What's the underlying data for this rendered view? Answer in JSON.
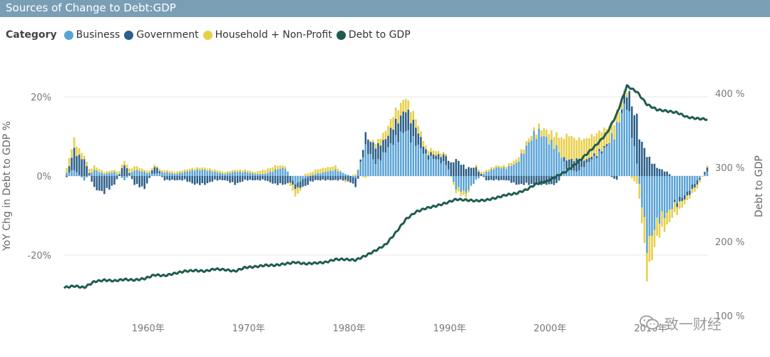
{
  "title": "Sources of Change to Debt:GDP",
  "legend": {
    "category_label": "Category",
    "items": [
      {
        "name": "Business",
        "color": "#5aa3d6"
      },
      {
        "name": "Government",
        "color": "#2c5f8a"
      },
      {
        "name": "Household + Non-Profit",
        "color": "#e8cf48"
      },
      {
        "name": "Debt to GDP",
        "color": "#1f5c50"
      }
    ]
  },
  "watermark": "致一财经",
  "chart_data": {
    "type": "bar",
    "stacked": true,
    "ylabel": "YoY Chg in Debt to GDP %",
    "y2label": "Debt to GDP",
    "xticks": [
      "1960年",
      "1970年",
      "1980年",
      "1990年",
      "2000年",
      "2010年"
    ],
    "xtick_years": [
      1960,
      1970,
      1980,
      1990,
      2000,
      2010
    ],
    "yticks": [
      "20%",
      "0%",
      "-20%"
    ],
    "ytick_values": [
      20,
      0,
      -20
    ],
    "y2ticks": [
      "400 %",
      "300 %",
      "200 %",
      "100 %"
    ],
    "y2tick_values": [
      400,
      300,
      200,
      100
    ],
    "ylim": [
      -30,
      25
    ],
    "y2lim": [
      100,
      420
    ],
    "xlim": [
      1952,
      2016
    ],
    "grid": true,
    "legend_position": "top-left",
    "bar_step_years": 0.25,
    "bar_series": [
      {
        "name": "Business",
        "color": "#5aa3d6",
        "points": [
          [
            1952,
            0.5
          ],
          [
            1953,
            1.5
          ],
          [
            1954,
            -1
          ],
          [
            1955,
            1.5
          ],
          [
            1956,
            0.5
          ],
          [
            1957,
            1
          ],
          [
            1958,
            -1
          ],
          [
            1959,
            1.5
          ],
          [
            1960,
            1
          ],
          [
            1961,
            0.5
          ],
          [
            1962,
            1
          ],
          [
            1963,
            0.5
          ],
          [
            1964,
            1
          ],
          [
            1965,
            1.5
          ],
          [
            1966,
            1.5
          ],
          [
            1967,
            1
          ],
          [
            1968,
            0.5
          ],
          [
            1969,
            1
          ],
          [
            1970,
            1
          ],
          [
            1971,
            0.5
          ],
          [
            1972,
            0.5
          ],
          [
            1973,
            1.5
          ],
          [
            1974,
            2
          ],
          [
            1975,
            -2
          ],
          [
            1976,
            -0.5
          ],
          [
            1977,
            0.5
          ],
          [
            1978,
            1
          ],
          [
            1979,
            1.5
          ],
          [
            1980,
            0.5
          ],
          [
            1981,
            -0.5
          ],
          [
            1982,
            7
          ],
          [
            1983,
            3
          ],
          [
            1984,
            6
          ],
          [
            1985,
            9
          ],
          [
            1986,
            11
          ],
          [
            1987,
            8
          ],
          [
            1988,
            5
          ],
          [
            1989,
            4
          ],
          [
            1990,
            3
          ],
          [
            1991,
            -3
          ],
          [
            1992,
            -4
          ],
          [
            1993,
            -1
          ],
          [
            1994,
            1
          ],
          [
            1995,
            2
          ],
          [
            1996,
            2
          ],
          [
            1997,
            3
          ],
          [
            1998,
            7
          ],
          [
            1999,
            11
          ],
          [
            2000,
            9
          ],
          [
            2001,
            7
          ],
          [
            2002,
            2
          ],
          [
            2003,
            1
          ],
          [
            2004,
            3
          ],
          [
            2005,
            5
          ],
          [
            2006,
            7
          ],
          [
            2007,
            12
          ],
          [
            2008,
            18
          ],
          [
            2009,
            3
          ],
          [
            2010,
            -17
          ],
          [
            2011,
            -11
          ],
          [
            2012,
            -9
          ],
          [
            2013,
            -6
          ],
          [
            2014,
            -4
          ],
          [
            2015,
            -1
          ],
          [
            2016,
            1
          ]
        ]
      },
      {
        "name": "Government",
        "color": "#2c5f8a",
        "points": [
          [
            1952,
            -2
          ],
          [
            1953,
            5
          ],
          [
            1954,
            4
          ],
          [
            1955,
            -3
          ],
          [
            1956,
            -4
          ],
          [
            1957,
            -2
          ],
          [
            1958,
            3
          ],
          [
            1959,
            -2
          ],
          [
            1960,
            -3
          ],
          [
            1961,
            2
          ],
          [
            1962,
            -1
          ],
          [
            1963,
            -1
          ],
          [
            1964,
            -1
          ],
          [
            1965,
            -2
          ],
          [
            1966,
            -2
          ],
          [
            1967,
            -1
          ],
          [
            1968,
            -1
          ],
          [
            1969,
            -2
          ],
          [
            1970,
            -1
          ],
          [
            1971,
            -1
          ],
          [
            1972,
            -1
          ],
          [
            1973,
            -2
          ],
          [
            1974,
            -2
          ],
          [
            1975,
            -1
          ],
          [
            1976,
            -2
          ],
          [
            1977,
            -1
          ],
          [
            1978,
            -1
          ],
          [
            1979,
            -1
          ],
          [
            1980,
            -1
          ],
          [
            1981,
            -2
          ],
          [
            1982,
            3
          ],
          [
            1983,
            4
          ],
          [
            1984,
            3
          ],
          [
            1985,
            4
          ],
          [
            1986,
            5
          ],
          [
            1987,
            4
          ],
          [
            1988,
            1
          ],
          [
            1989,
            1
          ],
          [
            1990,
            2
          ],
          [
            1991,
            4
          ],
          [
            1992,
            2
          ],
          [
            1993,
            2
          ],
          [
            1994,
            -1
          ],
          [
            1995,
            -1
          ],
          [
            1996,
            -1
          ],
          [
            1997,
            -2
          ],
          [
            1998,
            -2
          ],
          [
            1999,
            -2
          ],
          [
            2000,
            -2
          ],
          [
            2001,
            -2
          ],
          [
            2002,
            2
          ],
          [
            2003,
            3
          ],
          [
            2004,
            1
          ],
          [
            2005,
            0.5
          ],
          [
            2006,
            0.5
          ],
          [
            2007,
            -1
          ],
          [
            2008,
            3
          ],
          [
            2009,
            11
          ],
          [
            2010,
            5
          ],
          [
            2011,
            2
          ],
          [
            2012,
            1
          ],
          [
            2013,
            -1
          ],
          [
            2014,
            -1
          ],
          [
            2015,
            -1
          ],
          [
            2016,
            1
          ]
        ]
      },
      {
        "name": "Household + Non-Profit",
        "color": "#e8cf48",
        "points": [
          [
            1952,
            1
          ],
          [
            1953,
            2.5
          ],
          [
            1954,
            1
          ],
          [
            1955,
            1
          ],
          [
            1956,
            0.5
          ],
          [
            1957,
            0.5
          ],
          [
            1958,
            1
          ],
          [
            1959,
            1
          ],
          [
            1960,
            0.5
          ],
          [
            1961,
            0.5
          ],
          [
            1962,
            0.5
          ],
          [
            1963,
            0.5
          ],
          [
            1964,
            0.5
          ],
          [
            1965,
            0.5
          ],
          [
            1966,
            0.5
          ],
          [
            1967,
            0.5
          ],
          [
            1968,
            0.5
          ],
          [
            1969,
            0.5
          ],
          [
            1970,
            0.5
          ],
          [
            1971,
            0.5
          ],
          [
            1972,
            1
          ],
          [
            1973,
            1
          ],
          [
            1974,
            0.5
          ],
          [
            1975,
            -2
          ],
          [
            1976,
            0.5
          ],
          [
            1977,
            1
          ],
          [
            1978,
            1
          ],
          [
            1979,
            1
          ],
          [
            1980,
            -0.5
          ],
          [
            1981,
            0.5
          ],
          [
            1982,
            -0.5
          ],
          [
            1983,
            1
          ],
          [
            1984,
            2
          ],
          [
            1985,
            3
          ],
          [
            1986,
            3
          ],
          [
            1987,
            2
          ],
          [
            1988,
            1
          ],
          [
            1989,
            1
          ],
          [
            1990,
            0.5
          ],
          [
            1991,
            -1
          ],
          [
            1992,
            -1
          ],
          [
            1993,
            0.5
          ],
          [
            1994,
            0.5
          ],
          [
            1995,
            0.5
          ],
          [
            1996,
            0.5
          ],
          [
            1997,
            1
          ],
          [
            1998,
            1
          ],
          [
            1999,
            1
          ],
          [
            2000,
            2
          ],
          [
            2001,
            3
          ],
          [
            2002,
            6
          ],
          [
            2003,
            5
          ],
          [
            2004,
            5
          ],
          [
            2005,
            5
          ],
          [
            2006,
            4
          ],
          [
            2007,
            3
          ],
          [
            2008,
            1
          ],
          [
            2009,
            -2
          ],
          [
            2010,
            -7
          ],
          [
            2011,
            -4
          ],
          [
            2012,
            -3
          ],
          [
            2013,
            -2
          ],
          [
            2014,
            -1
          ],
          [
            2015,
            -1
          ],
          [
            2016,
            0.5
          ]
        ]
      }
    ],
    "line_series": {
      "name": "Debt to GDP",
      "color": "#1f5c50",
      "points": [
        [
          1952,
          138
        ],
        [
          1953,
          140
        ],
        [
          1954,
          138
        ],
        [
          1955,
          146
        ],
        [
          1956,
          148
        ],
        [
          1957,
          147
        ],
        [
          1958,
          149
        ],
        [
          1959,
          148
        ],
        [
          1960,
          150
        ],
        [
          1961,
          155
        ],
        [
          1962,
          154
        ],
        [
          1963,
          157
        ],
        [
          1964,
          160
        ],
        [
          1965,
          161
        ],
        [
          1966,
          160
        ],
        [
          1967,
          163
        ],
        [
          1968,
          162
        ],
        [
          1969,
          160
        ],
        [
          1970,
          165
        ],
        [
          1971,
          166
        ],
        [
          1972,
          168
        ],
        [
          1973,
          168
        ],
        [
          1974,
          170
        ],
        [
          1975,
          172
        ],
        [
          1976,
          170
        ],
        [
          1977,
          171
        ],
        [
          1978,
          172
        ],
        [
          1979,
          176
        ],
        [
          1980,
          176
        ],
        [
          1981,
          175
        ],
        [
          1982,
          181
        ],
        [
          1983,
          188
        ],
        [
          1984,
          196
        ],
        [
          1985,
          212
        ],
        [
          1986,
          230
        ],
        [
          1987,
          240
        ],
        [
          1988,
          245
        ],
        [
          1989,
          248
        ],
        [
          1990,
          252
        ],
        [
          1991,
          257
        ],
        [
          1992,
          256
        ],
        [
          1993,
          255
        ],
        [
          1994,
          256
        ],
        [
          1995,
          259
        ],
        [
          1996,
          263
        ],
        [
          1997,
          265
        ],
        [
          1998,
          270
        ],
        [
          1999,
          278
        ],
        [
          2000,
          281
        ],
        [
          2001,
          288
        ],
        [
          2002,
          295
        ],
        [
          2003,
          306
        ],
        [
          2004,
          318
        ],
        [
          2005,
          331
        ],
        [
          2006,
          346
        ],
        [
          2007,
          372
        ],
        [
          2008,
          410
        ],
        [
          2009,
          402
        ],
        [
          2010,
          385
        ],
        [
          2011,
          378
        ],
        [
          2012,
          376
        ],
        [
          2013,
          374
        ],
        [
          2014,
          368
        ],
        [
          2015,
          366
        ],
        [
          2016,
          365
        ]
      ]
    }
  }
}
